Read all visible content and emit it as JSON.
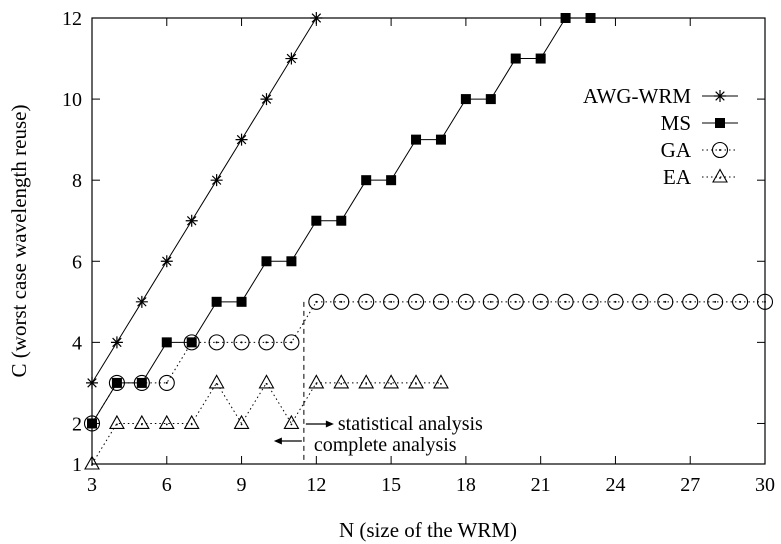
{
  "chart_data": {
    "type": "line",
    "title": "",
    "xlabel": "N (size of the WRM)",
    "ylabel": "C (worst case wavelength reuse)",
    "xlim": [
      3,
      30
    ],
    "ylim": [
      1,
      12
    ],
    "xticks": [
      3,
      6,
      9,
      12,
      15,
      18,
      21,
      24,
      27,
      30
    ],
    "yticks": [
      1,
      2,
      4,
      6,
      8,
      10,
      12
    ],
    "grid": false,
    "legend_position": "top-right",
    "series": [
      {
        "name": "AWG-WRM",
        "marker": "star",
        "line": "solid",
        "x": [
          3,
          4,
          5,
          6,
          7,
          8,
          9,
          10,
          11,
          12
        ],
        "y": [
          3,
          4,
          5,
          6,
          7,
          8,
          9,
          10,
          11,
          12
        ]
      },
      {
        "name": "MS",
        "marker": "filled-square",
        "line": "solid",
        "x": [
          3,
          4,
          5,
          6,
          7,
          8,
          9,
          10,
          11,
          12,
          13,
          14,
          15,
          16,
          17,
          18,
          19,
          20,
          21,
          22,
          23
        ],
        "y": [
          2,
          3,
          3,
          4,
          4,
          5,
          5,
          6,
          6,
          7,
          7,
          8,
          8,
          9,
          9,
          10,
          10,
          11,
          11,
          12,
          12
        ]
      },
      {
        "name": "GA",
        "marker": "circle",
        "line": "dotted",
        "x": [
          3,
          4,
          5,
          6,
          7,
          8,
          9,
          10,
          11,
          12,
          13,
          14,
          15,
          16,
          17,
          18,
          19,
          20,
          21,
          22,
          23,
          24,
          25,
          26,
          27,
          28,
          29,
          30
        ],
        "y": [
          2,
          3,
          3,
          3,
          4,
          4,
          4,
          4,
          4,
          5,
          5,
          5,
          5,
          5,
          5,
          5,
          5,
          5,
          5,
          5,
          5,
          5,
          5,
          5,
          5,
          5,
          5,
          5
        ]
      },
      {
        "name": "EA",
        "marker": "triangle",
        "line": "dotted",
        "x": [
          3,
          4,
          5,
          6,
          7,
          8,
          9,
          10,
          11,
          12,
          13,
          14,
          15,
          16,
          17
        ],
        "y": [
          1,
          2,
          2,
          2,
          2,
          3,
          2,
          3,
          2,
          3,
          3,
          3,
          3,
          3,
          3
        ]
      }
    ],
    "annotations": {
      "divider_x": 11.5,
      "statistical": "statistical analysis",
      "complete": "complete analysis"
    }
  }
}
